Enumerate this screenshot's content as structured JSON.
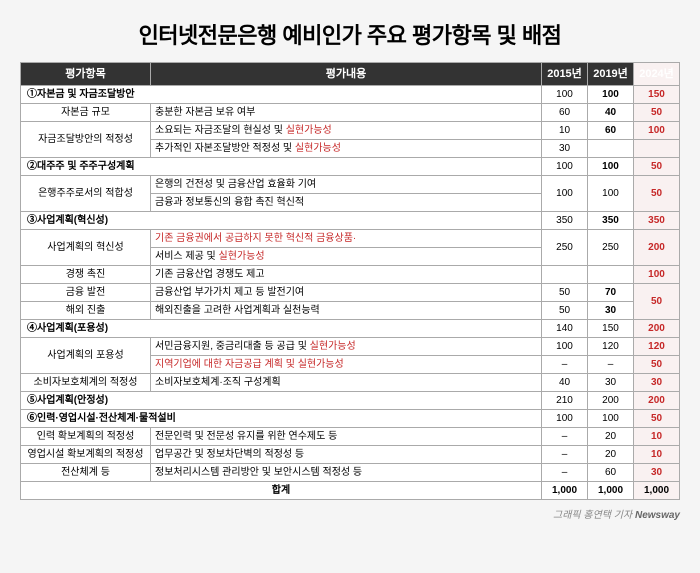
{
  "title": "인터넷전문은행 예비인가 주요 평가항목 및 배점",
  "columns": {
    "item": "평가항목",
    "desc": "평가내용",
    "y2015": "2015년",
    "y2019": "2019년",
    "y2024": "2024년"
  },
  "sections": [
    {
      "label": "①자본금 및 자금조달방안",
      "y2015": "100",
      "y2019": "100",
      "y2019_bold": true,
      "y2024": "150",
      "rows": [
        {
          "item": "자본금 규모",
          "item_rowspan": 1,
          "desc": "충분한 자본금 보유 여부",
          "y2015": "60",
          "y2019": "40",
          "y2019_bold": true,
          "y2024": "50"
        },
        {
          "item": "자금조달방안의 적정성",
          "item_rowspan": 2,
          "desc": "소요되는 자금조달의 현실성 및 ",
          "desc_red": "실현가능성",
          "y2015": "10",
          "y2019": "60",
          "y2019_bold": true,
          "y2024": "100"
        },
        {
          "desc": "추가적인 자본조달방안 적정성 및 ",
          "desc_red": "실현가능성",
          "y2015": "30",
          "y2019": "",
          "y2024": ""
        }
      ]
    },
    {
      "label": "②대주주 및 주주구성계획",
      "y2015": "100",
      "y2019": "100",
      "y2019_bold": true,
      "y2024": "50",
      "rows": [
        {
          "item": "은행주주로서의 적합성",
          "item_rowspan": 2,
          "desc": "은행의 건전성 및 금융산업 효율화 기여",
          "y2015": "100",
          "y2015_rowspan": 2,
          "y2019": "100",
          "y2019_rowspan": 2,
          "y2024": "50",
          "y2024_rowspan": 2
        },
        {
          "desc": "금융과 정보통신의 융합 촉진 혁신적"
        }
      ]
    },
    {
      "label": "③사업계획(혁신성)",
      "y2015": "350",
      "y2019": "350",
      "y2019_bold": true,
      "y2024": "350",
      "rows": [
        {
          "item": "사업계획의 혁신성",
          "item_rowspan": 2,
          "desc_full_red": "기존 금융권에서 공급하지 못한 혁신적 금융상품·",
          "y2015": "250",
          "y2015_rowspan": 2,
          "y2019": "250",
          "y2019_rowspan": 2,
          "y2024": "200",
          "y2024_rowspan": 2
        },
        {
          "desc": "서비스 제공 및 ",
          "desc_red": "실현가능성"
        },
        {
          "item": "경쟁 촉진",
          "item_rowspan": 1,
          "desc": "기존 금융산업 경쟁도 제고",
          "y2015": "",
          "y2019": "",
          "y2024": "100"
        },
        {
          "item": "금융 발전",
          "item_rowspan": 1,
          "desc": "금융산업 부가가치 제고 등 발전기여",
          "y2015": "50",
          "y2019": "70",
          "y2019_bold": true,
          "y2024": "50",
          "y2024_rowspan": 2
        },
        {
          "item": "해외 진출",
          "item_rowspan": 1,
          "desc": "해외진출을 고려한 사업계획과 실천능력",
          "y2015": "50",
          "y2019": "30",
          "y2019_bold": true
        }
      ]
    },
    {
      "label": "④사업계획(포용성)",
      "y2015": "140",
      "y2019": "150",
      "y2024": "200",
      "rows": [
        {
          "item": "사업계획의 포용성",
          "item_rowspan": 2,
          "desc": "서민금융지원, 중금리대출 등 공급 및 ",
          "desc_red": "실현가능성",
          "y2015": "100",
          "y2019": "120",
          "y2024": "120"
        },
        {
          "desc_full_red": "지역기업에 대한 자금공급 계획 및 실현가능성",
          "y2015": "–",
          "y2019": "–",
          "y2024": "50"
        },
        {
          "item": "소비자보호체계의 적정성",
          "item_rowspan": 1,
          "desc": "소비자보호체계·조직 구성계획",
          "y2015": "40",
          "y2019": "30",
          "y2024": "30"
        }
      ]
    },
    {
      "label": "⑤사업계획(안정성)",
      "y2015": "210",
      "y2019": "200",
      "y2024": "200",
      "y2024_bold": true,
      "no_rows": true
    },
    {
      "label": "⑥인력·영업시설·전산체계·물적설비",
      "y2015": "100",
      "y2019": "100",
      "y2024": "50",
      "rows": [
        {
          "item": "인력 확보계획의 적정성",
          "item_rowspan": 1,
          "desc": "전문인력 및 전문성 유지를 위한 연수제도 등",
          "y2015": "–",
          "y2019": "20",
          "y2024": "10"
        },
        {
          "item": "영업시설 확보계획의 적정성",
          "item_rowspan": 1,
          "desc": "업무공간 및 정보차단벽의 적정성 등",
          "y2015": "–",
          "y2019": "20",
          "y2024": "10"
        },
        {
          "item": "전산체계 등",
          "item_rowspan": 1,
          "desc": "정보처리시스템 관리방안 및 보안시스템 적정성 등",
          "y2015": "–",
          "y2019": "60",
          "y2024": "30"
        }
      ]
    }
  ],
  "total": {
    "label": "합계",
    "y2015": "1,000",
    "y2019": "1,000",
    "y2024": "1,000"
  },
  "footer": {
    "credit": "그래픽 홍연택 기자",
    "brand": "Newsway"
  },
  "colors": {
    "header_bg": "#333333",
    "header_fg": "#ffffff",
    "border": "#aaaaaa",
    "red": "#c62828",
    "y2024_bg": "#f9f1f1",
    "body_bg": "#f5f5f5"
  }
}
